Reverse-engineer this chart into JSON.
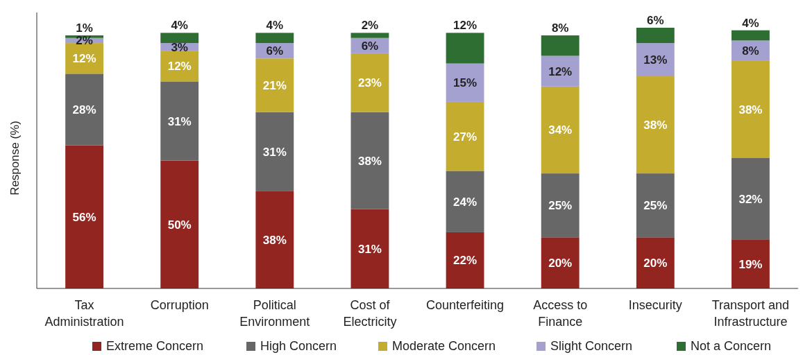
{
  "chart_data": {
    "type": "bar",
    "stacked": true,
    "legend": "bottom",
    "ylabel": "Response (%)",
    "categories": [
      "Tax Administration",
      "Corruption",
      "Political Environment",
      "Cost of Electricity",
      "Counterfeiting",
      "Access to Finance",
      "Insecurity",
      "Transport and Infrastructure"
    ],
    "series": [
      {
        "name": "Extreme Concern",
        "color": "#922520",
        "values": [
          56,
          50,
          38,
          31,
          22,
          20,
          20,
          19
        ],
        "value_labels": [
          "56%",
          "50%",
          "38%",
          "31%",
          "22%",
          "20%",
          "20%",
          "19%"
        ]
      },
      {
        "name": "High Concern",
        "color": "#666766",
        "values": [
          28,
          31,
          31,
          38,
          24,
          25,
          25,
          32
        ],
        "value_labels": [
          "28%",
          "31%",
          "31%",
          "38%",
          "24%",
          "25%",
          "25%",
          "32%"
        ]
      },
      {
        "name": "Moderate Concern",
        "color": "#c4ac2f",
        "values": [
          12,
          12,
          21,
          23,
          27,
          34,
          38,
          38
        ],
        "value_labels": [
          "12%",
          "12%",
          "21%",
          "23%",
          "27%",
          "34%",
          "38%",
          "38%"
        ]
      },
      {
        "name": "Slight Concern",
        "color": "#a4a0d0",
        "values": [
          2,
          3,
          6,
          6,
          15,
          12,
          13,
          8
        ],
        "value_labels": [
          "2%",
          "3%",
          "6%",
          "6%",
          "15%",
          "12%",
          "13%",
          "8%"
        ]
      },
      {
        "name": "Not a Concern",
        "color": "#2f6e33",
        "values": [
          1,
          4,
          4,
          2,
          12,
          8,
          6,
          4
        ],
        "value_labels": [
          "1%",
          "4%",
          "4%",
          "2%",
          "12%",
          "8%",
          "6%",
          "4%"
        ]
      }
    ]
  }
}
